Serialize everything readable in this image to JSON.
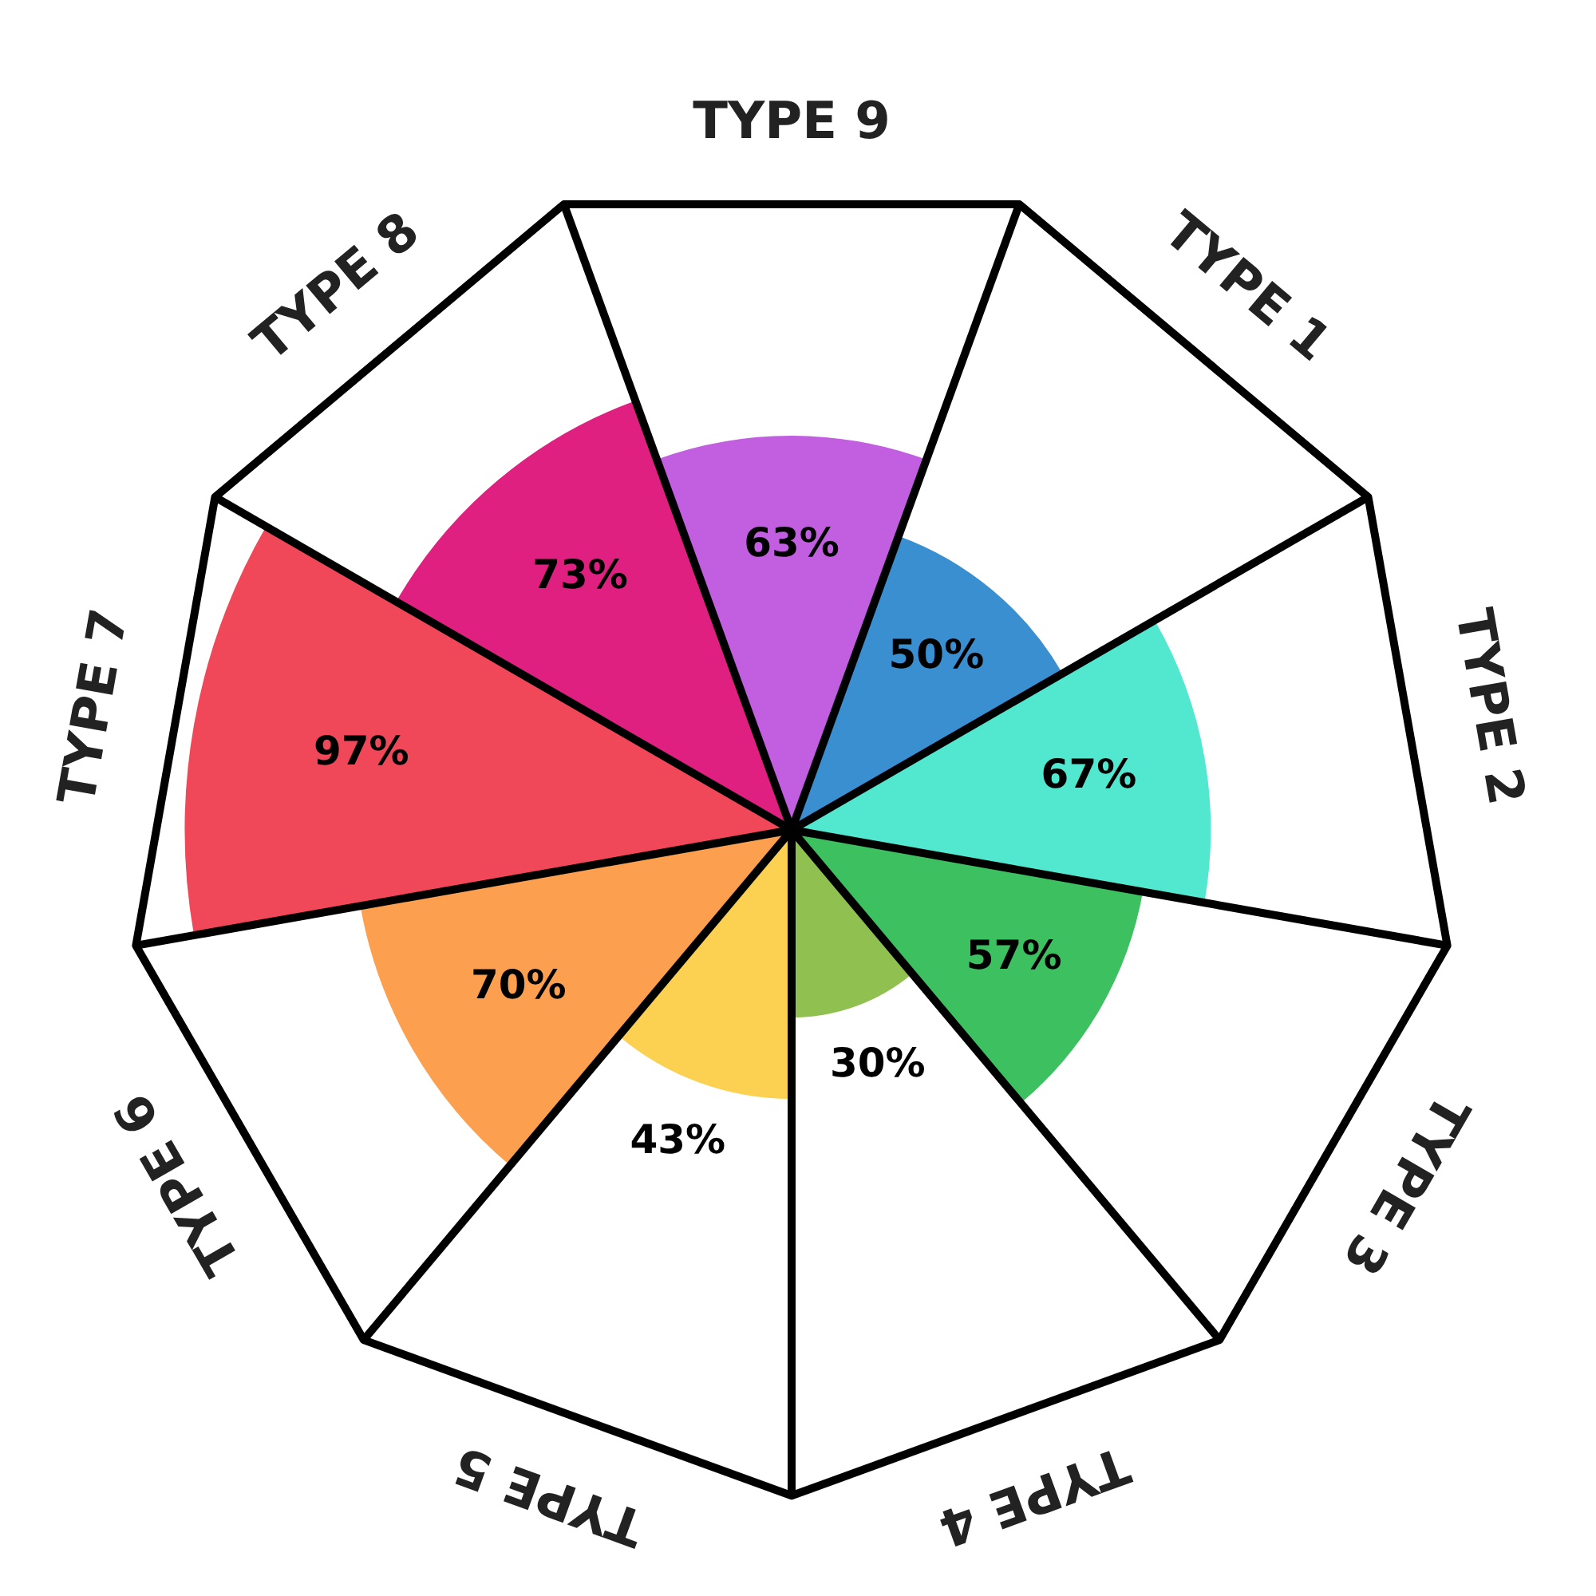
{
  "chart_data": {
    "type": "other",
    "categories": [
      "TYPE 9",
      "TYPE 1",
      "TYPE 2",
      "TYPE 3",
      "TYPE 4",
      "TYPE 5",
      "TYPE 6",
      "TYPE 7",
      "TYPE 8"
    ],
    "values": [
      63,
      50,
      67,
      57,
      30,
      43,
      70,
      97,
      73
    ],
    "value_labels": [
      "63%",
      "50%",
      "67%",
      "57%",
      "30%",
      "43%",
      "70%",
      "97%",
      "73%"
    ],
    "colors": [
      "#c25ee0",
      "#3a8fd0",
      "#52e8d0",
      "#3cc060",
      "#90c050",
      "#fcd050",
      "#fca050",
      "#f04858",
      "#e02080"
    ]
  }
}
